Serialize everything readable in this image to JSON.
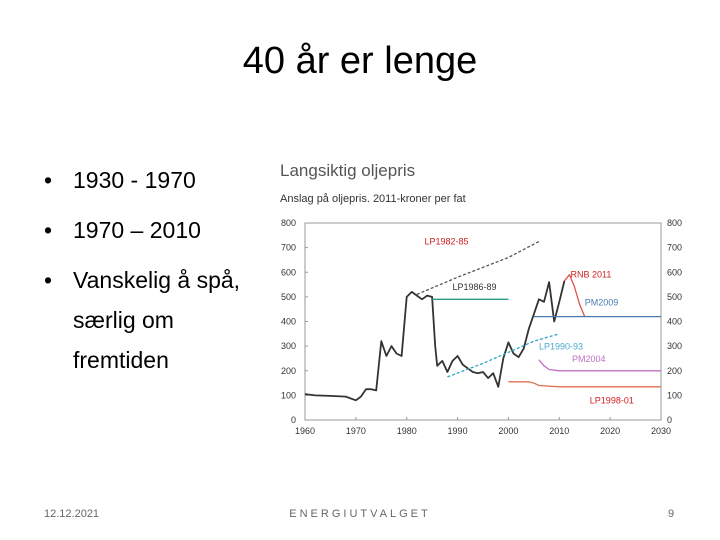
{
  "slide": {
    "title": "40 år er lenge",
    "bullets": [
      "1930 - 1970",
      "1970 – 2010",
      "Vanskelig å spå, særlig om fremtiden"
    ],
    "bullet_char": "•",
    "footer": {
      "date": "12.12.2021",
      "center": "ENERGIUTVALGET",
      "page": "9"
    }
  },
  "chart_data": {
    "type": "line",
    "title": "Langsiktig oljepris",
    "subtitle": "Anslag på oljepris. 2011-kroner per fat",
    "xlim": [
      1960,
      2030
    ],
    "ylim": [
      0,
      800
    ],
    "x_ticks": [
      1960,
      1970,
      1980,
      1990,
      2000,
      2010,
      2020,
      2030
    ],
    "y_ticks": [
      0,
      100,
      200,
      300,
      400,
      500,
      600,
      700,
      800
    ],
    "grid": false,
    "series": [
      {
        "name": "",
        "color": "#333333",
        "style": "solid",
        "x": [
          1960,
          1962,
          1965,
          1968,
          1970,
          1971,
          1972,
          1973,
          1974,
          1975,
          1976,
          1977,
          1978,
          1979,
          1980,
          1981,
          1982,
          1983,
          1984,
          1985,
          1985.6,
          1986,
          1987,
          1988,
          1989,
          1990,
          1991,
          1992,
          1993,
          1994,
          1995,
          1996,
          1997,
          1998,
          1999,
          2000,
          2001,
          2002,
          2003,
          2004,
          2005,
          2006,
          2007,
          2008,
          2009,
          2010,
          2011
        ],
        "y": [
          105,
          100,
          98,
          95,
          80,
          95,
          125,
          125,
          120,
          320,
          260,
          300,
          270,
          260,
          500,
          520,
          505,
          490,
          505,
          500,
          300,
          220,
          240,
          195,
          240,
          260,
          225,
          210,
          195,
          190,
          195,
          170,
          190,
          135,
          250,
          315,
          270,
          255,
          290,
          370,
          430,
          490,
          480,
          560,
          400,
          480,
          565
        ]
      },
      {
        "name": "LP1982-85",
        "color": "#555555",
        "style": "dashed",
        "x": [
          1982,
          1990,
          2000,
          2006
        ],
        "y": [
          510,
          580,
          660,
          725
        ]
      },
      {
        "name": "LP1986-89",
        "color": "#2e9a8a",
        "style": "solid",
        "x": [
          1985,
          2000
        ],
        "y": [
          490,
          490
        ]
      },
      {
        "name": "LP1990-93",
        "color": "#2aa6c8",
        "style": "dashed",
        "x": [
          1988,
          1995,
          2000,
          2005,
          2010
        ],
        "y": [
          175,
          230,
          275,
          320,
          350
        ]
      },
      {
        "name": "RNB 2011",
        "color": "#e05050",
        "style": "solid",
        "x": [
          2011,
          2012,
          2013,
          2014,
          2015
        ],
        "y": [
          565,
          590,
          540,
          470,
          420
        ]
      },
      {
        "name": "PM2009",
        "color": "#4a7ab5",
        "style": "solid",
        "x": [
          2005,
          2030
        ],
        "y": [
          420,
          420
        ]
      },
      {
        "name": "PM2004",
        "color": "#c070c0",
        "style": "solid",
        "x": [
          2006,
          2007,
          2008,
          2010,
          2030
        ],
        "y": [
          245,
          220,
          205,
          200,
          200
        ]
      },
      {
        "name": "LP1998-01",
        "color": "#e07050",
        "style": "solid",
        "x": [
          2000,
          2004,
          2005,
          2006,
          2010,
          2030
        ],
        "y": [
          155,
          155,
          150,
          140,
          135,
          135
        ]
      }
    ],
    "annotations": [
      {
        "text": "LP1982-85",
        "x": 1983.5,
        "y": 712,
        "color": "#d02020"
      },
      {
        "text": "LP1986-89",
        "x": 1989,
        "y": 527,
        "color": "#333333"
      },
      {
        "text": "RNB 2011",
        "x": 2012.2,
        "y": 578,
        "color": "#d02020"
      },
      {
        "text": "PM2009",
        "x": 2015,
        "y": 465,
        "color": "#4a7ab5"
      },
      {
        "text": "LP1990-93",
        "x": 2006,
        "y": 287,
        "color": "#4aa9cf"
      },
      {
        "text": "PM2004",
        "x": 2012.5,
        "y": 236,
        "color": "#c070c0"
      },
      {
        "text": "LP1998-01",
        "x": 2016,
        "y": 67,
        "color": "#d02020"
      }
    ]
  }
}
